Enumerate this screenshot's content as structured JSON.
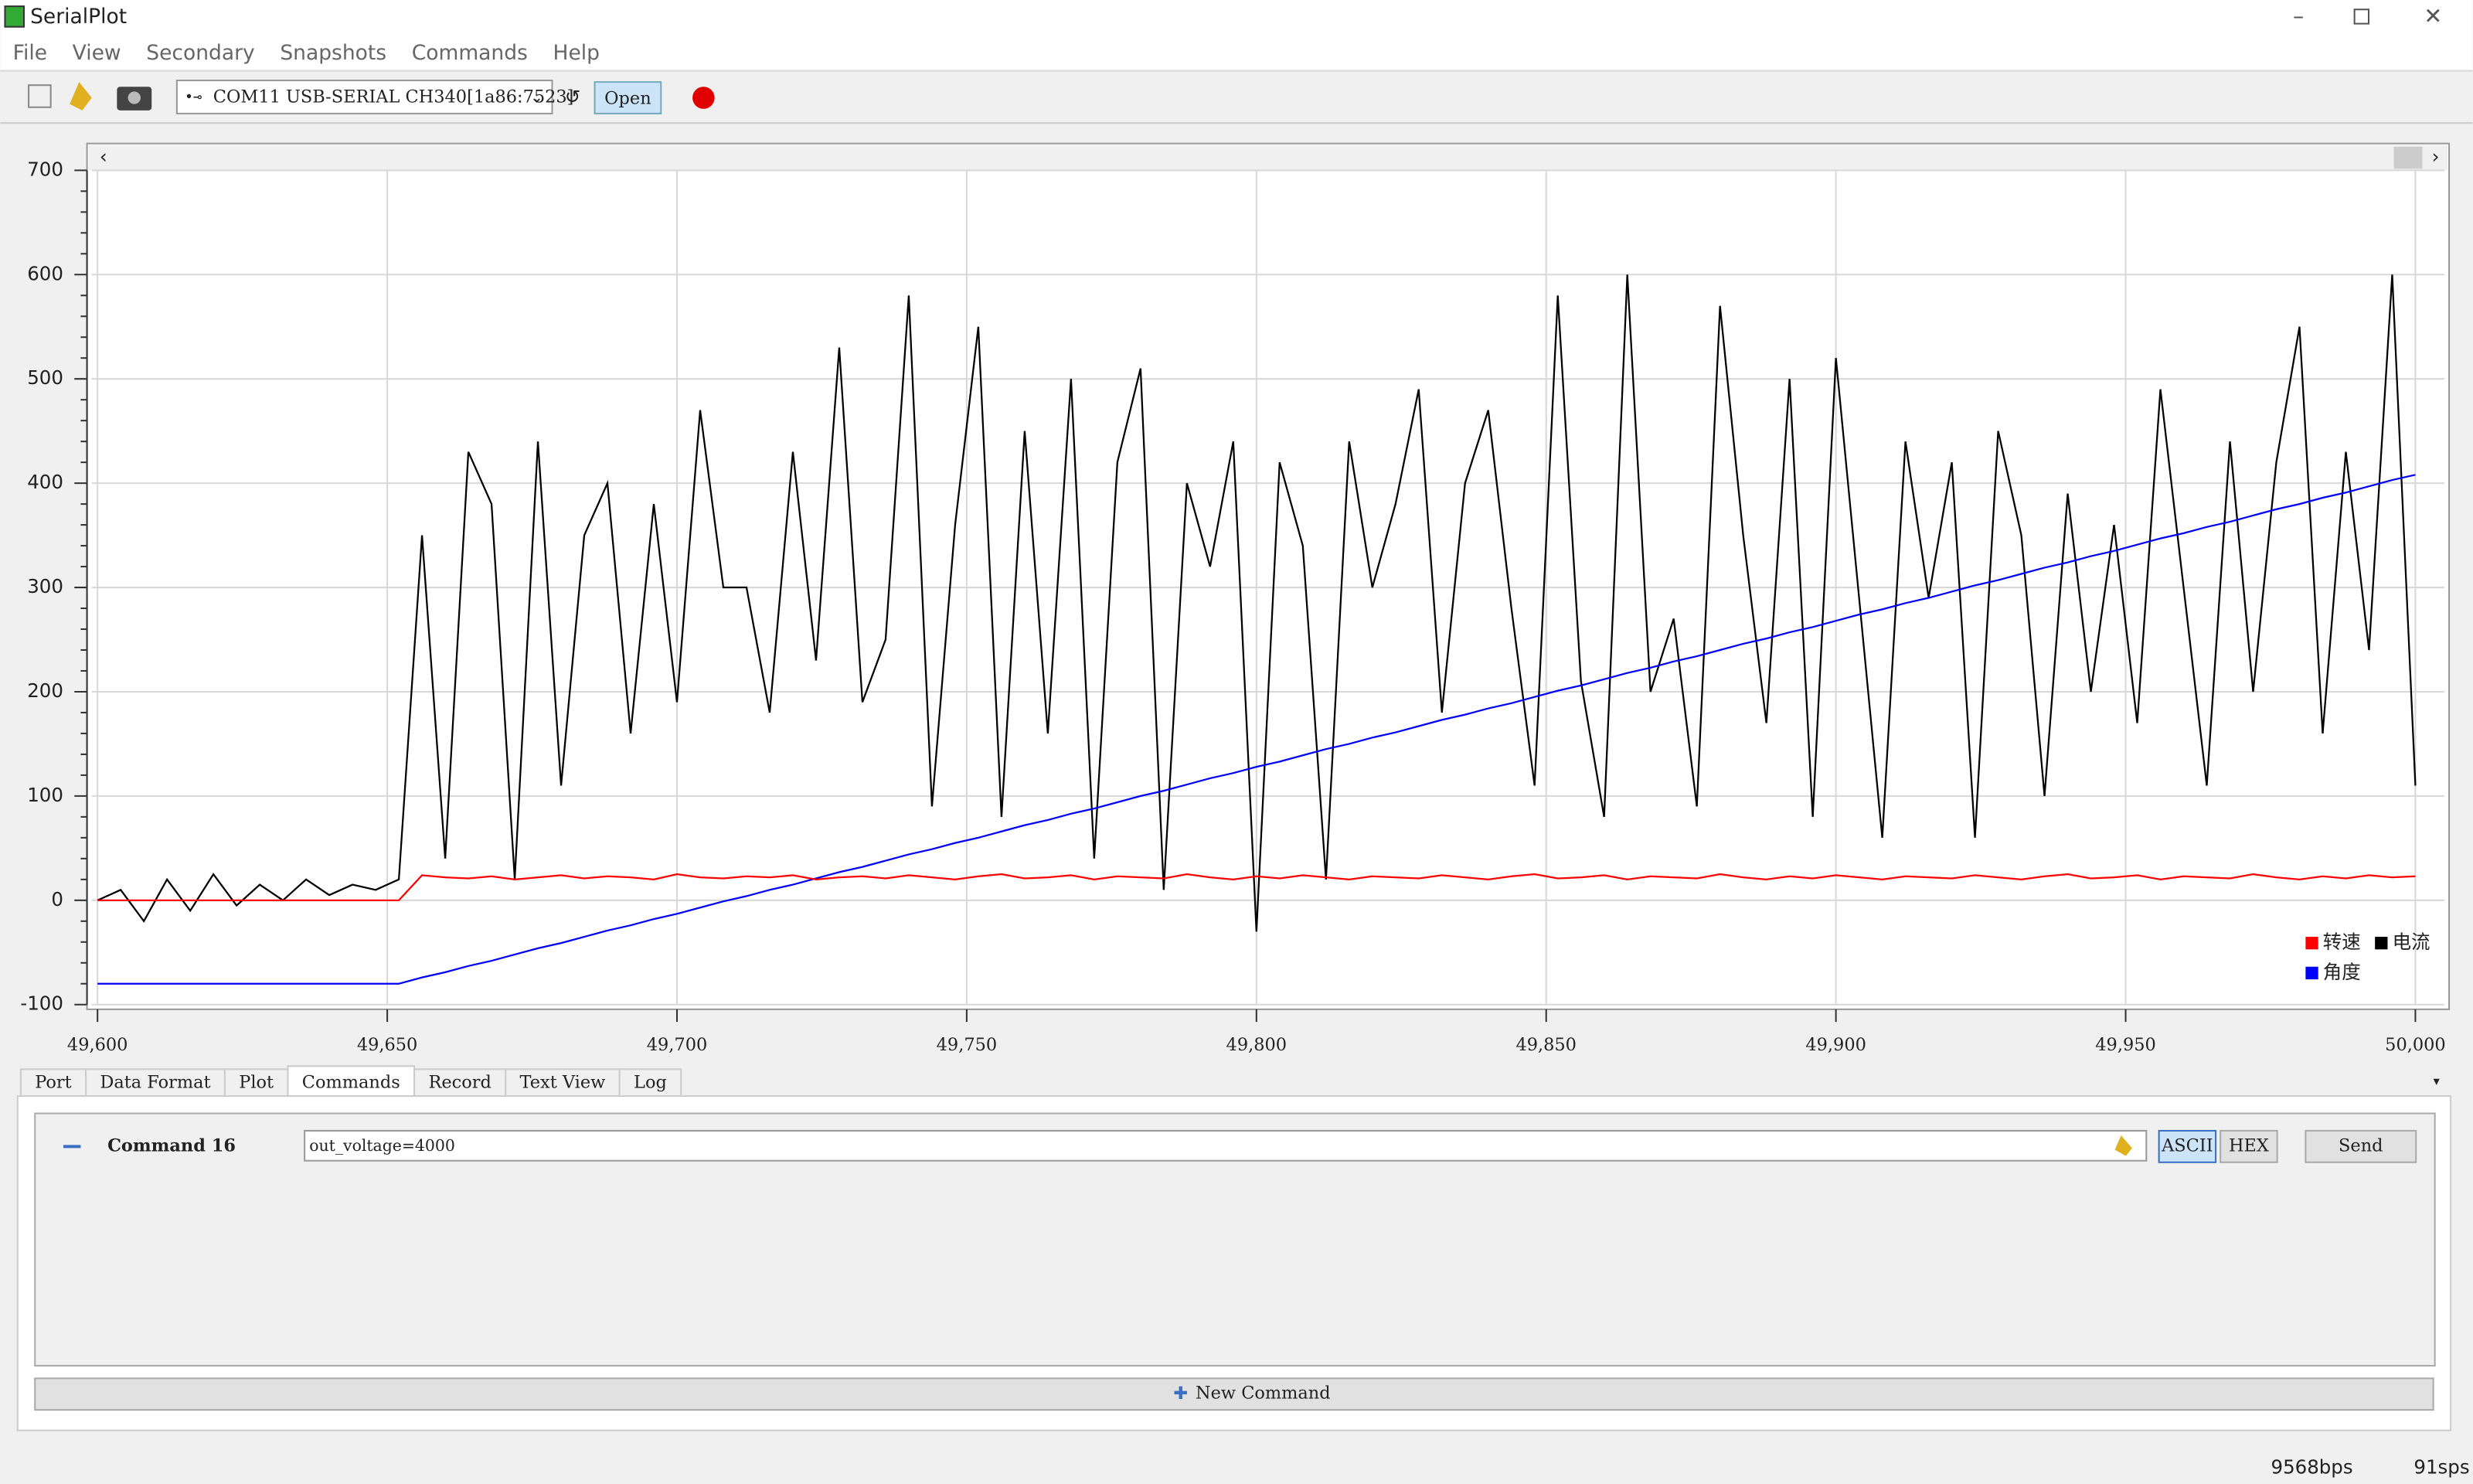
{
  "window": {
    "title": "SerialPlot",
    "menu": [
      "File",
      "View",
      "Secondary",
      "Snapshots",
      "Commands",
      "Help"
    ]
  },
  "toolbar": {
    "port": "COM11 USB-SERIAL CH340[1a86:7523]",
    "open": "Open"
  },
  "tabs": [
    "Port",
    "Data Format",
    "Plot",
    "Commands",
    "Record",
    "Text View",
    "Log"
  ],
  "command": {
    "name": "Command 16",
    "text": "out_voltage=4000",
    "ascii": "ASCII",
    "hex": "HEX",
    "send": "Send",
    "new": "New Command"
  },
  "status": {
    "bps": "9568bps",
    "sps": "91sps"
  },
  "chart_data": {
    "type": "line",
    "legend": "lower right",
    "grid": true,
    "xlim": [
      49599,
      50005
    ],
    "ylim": [
      -100,
      700
    ],
    "yticks": [
      -100,
      0,
      100,
      200,
      300,
      400,
      500,
      600,
      700
    ],
    "xticks": [
      {
        "value": 49600,
        "label": "49,600"
      },
      {
        "value": 49650,
        "label": "49,650"
      },
      {
        "value": 49700,
        "label": "49,700"
      },
      {
        "value": 49750,
        "label": "49,750"
      },
      {
        "value": 49800,
        "label": "49,800"
      },
      {
        "value": 49850,
        "label": "49,850"
      },
      {
        "value": 49900,
        "label": "49,900"
      },
      {
        "value": 49950,
        "label": "49,950"
      },
      {
        "value": 50000,
        "label": "50,000"
      }
    ],
    "x": [
      49600,
      49604,
      49608,
      49612,
      49616,
      49620,
      49624,
      49628,
      49632,
      49636,
      49640,
      49644,
      49648,
      49652,
      49656,
      49660,
      49664,
      49668,
      49672,
      49676,
      49680,
      49684,
      49688,
      49692,
      49696,
      49700,
      49704,
      49708,
      49712,
      49716,
      49720,
      49724,
      49728,
      49732,
      49736,
      49740,
      49744,
      49748,
      49752,
      49756,
      49760,
      49764,
      49768,
      49772,
      49776,
      49780,
      49784,
      49788,
      49792,
      49796,
      49800,
      49804,
      49808,
      49812,
      49816,
      49820,
      49824,
      49828,
      49832,
      49836,
      49840,
      49844,
      49848,
      49852,
      49856,
      49860,
      49864,
      49868,
      49872,
      49876,
      49880,
      49884,
      49888,
      49892,
      49896,
      49900,
      49904,
      49908,
      49912,
      49916,
      49920,
      49924,
      49928,
      49932,
      49936,
      49940,
      49944,
      49948,
      49952,
      49956,
      49960,
      49964,
      49968,
      49972,
      49976,
      49980,
      49984,
      49988,
      49992,
      49996,
      50000
    ],
    "series": [
      {
        "name": "转速",
        "color": "#ff0000",
        "values": [
          0,
          0,
          0,
          0,
          0,
          0,
          0,
          0,
          0,
          0,
          0,
          0,
          0,
          0,
          24,
          22,
          21,
          23,
          20,
          22,
          24,
          21,
          23,
          22,
          20,
          25,
          22,
          21,
          23,
          22,
          24,
          20,
          22,
          23,
          21,
          24,
          22,
          20,
          23,
          25,
          21,
          22,
          24,
          20,
          23,
          22,
          21,
          25,
          22,
          20,
          23,
          21,
          24,
          22,
          20,
          23,
          22,
          21,
          24,
          22,
          20,
          23,
          25,
          21,
          22,
          24,
          20,
          23,
          22,
          21,
          25,
          22,
          20,
          23,
          21,
          24,
          22,
          20,
          23,
          22,
          21,
          24,
          22,
          20,
          23,
          25,
          21,
          22,
          24,
          20,
          23,
          22,
          21,
          25,
          22,
          20,
          23,
          21,
          24,
          22,
          23
        ]
      },
      {
        "name": "电流",
        "color": "#000000",
        "values": [
          0,
          10,
          -20,
          20,
          -10,
          25,
          -5,
          15,
          0,
          20,
          5,
          15,
          10,
          20,
          350,
          40,
          430,
          380,
          20,
          440,
          110,
          350,
          400,
          160,
          380,
          190,
          470,
          300,
          300,
          180,
          430,
          230,
          530,
          190,
          250,
          580,
          90,
          360,
          550,
          80,
          450,
          160,
          500,
          40,
          420,
          510,
          10,
          400,
          320,
          440,
          -30,
          420,
          340,
          20,
          440,
          300,
          380,
          490,
          180,
          400,
          470,
          280,
          110,
          580,
          210,
          80,
          600,
          200,
          270,
          90,
          570,
          350,
          170,
          500,
          80,
          520,
          290,
          60,
          440,
          290,
          420,
          60,
          450,
          350,
          100,
          390,
          200,
          360,
          170,
          490,
          300,
          110,
          440,
          200,
          420,
          550,
          160,
          430,
          240,
          600,
          110
        ]
      },
      {
        "name": "角度",
        "color": "#0000ff",
        "values": [
          -80,
          -80,
          -80,
          -80,
          -80,
          -80,
          -80,
          -80,
          -80,
          -80,
          -80,
          -80,
          -80,
          -80,
          -74,
          -69,
          -63,
          -58,
          -52,
          -46,
          -41,
          -35,
          -29,
          -24,
          -18,
          -13,
          -7,
          -1,
          4,
          10,
          15,
          21,
          27,
          32,
          38,
          44,
          49,
          55,
          60,
          66,
          72,
          77,
          83,
          88,
          94,
          100,
          105,
          111,
          117,
          122,
          128,
          133,
          139,
          145,
          150,
          156,
          161,
          167,
          173,
          178,
          184,
          189,
          195,
          201,
          206,
          212,
          218,
          223,
          229,
          234,
          240,
          246,
          251,
          257,
          262,
          268,
          274,
          279,
          285,
          290,
          296,
          302,
          307,
          313,
          319,
          324,
          330,
          335,
          341,
          347,
          352,
          358,
          363,
          369,
          375,
          380,
          386,
          391,
          397,
          403,
          408
        ]
      }
    ]
  }
}
